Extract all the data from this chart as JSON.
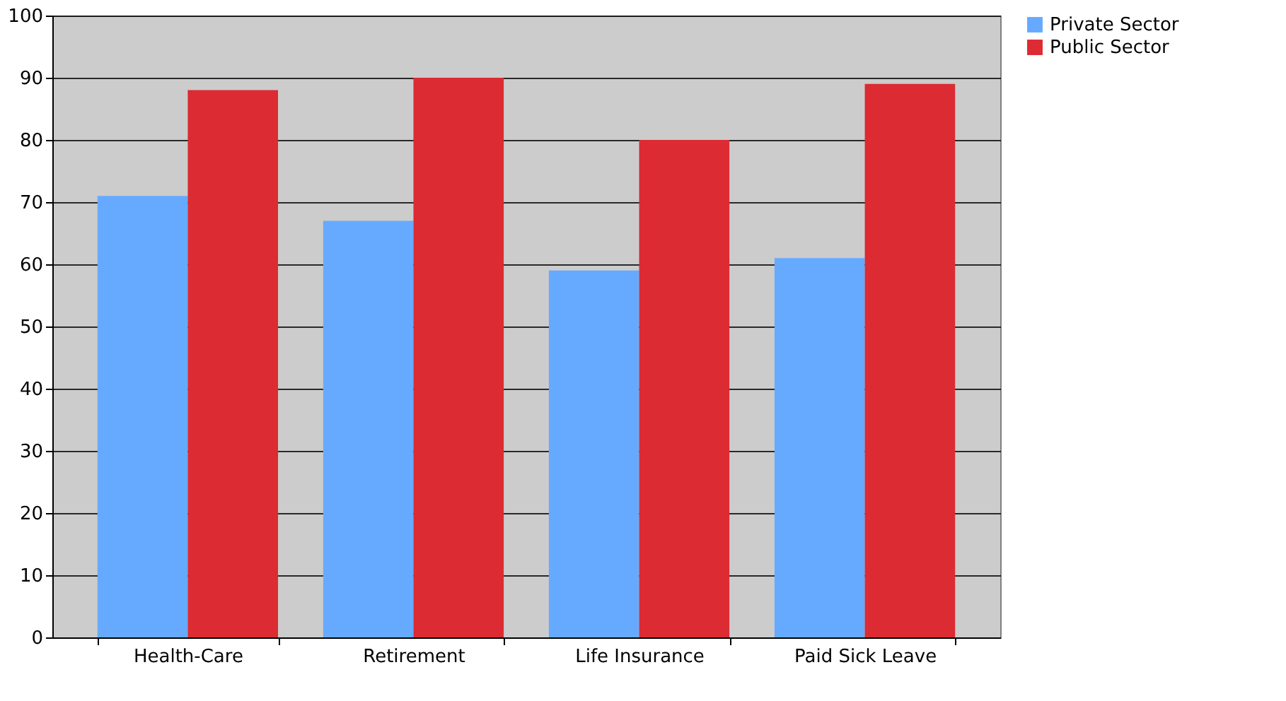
{
  "chart_data": {
    "type": "bar",
    "categories": [
      "Health-Care",
      "Retirement",
      "Life Insurance",
      "Paid Sick Leave"
    ],
    "series": [
      {
        "name": "Private Sector",
        "color": "#66aaff",
        "values": [
          71,
          67,
          59,
          61
        ]
      },
      {
        "name": "Public Sector",
        "color": "#dc2b32",
        "values": [
          88,
          90,
          80,
          89
        ]
      }
    ],
    "ylim": [
      0,
      100
    ],
    "yticks": [
      0,
      10,
      20,
      30,
      40,
      50,
      60,
      70,
      80,
      90,
      100
    ],
    "grid": "y",
    "legend": "right"
  }
}
